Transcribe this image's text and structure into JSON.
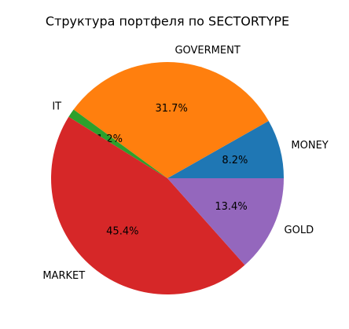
{
  "chart_data": {
    "type": "pie",
    "title": "Структура портфеля по SECTORTYPE",
    "categories": [
      "MONEY",
      "GOVERMENT",
      "IT",
      "MARKET",
      "GOLD"
    ],
    "values": [
      8.2,
      31.7,
      1.2,
      45.4,
      13.4
    ],
    "value_labels": [
      "8.2%",
      "31.7%",
      "1.2%",
      "45.4%",
      "13.4%"
    ],
    "colors": [
      "#1f77b4",
      "#ff7f0e",
      "#2ca02c",
      "#d62728",
      "#9467bd"
    ]
  }
}
